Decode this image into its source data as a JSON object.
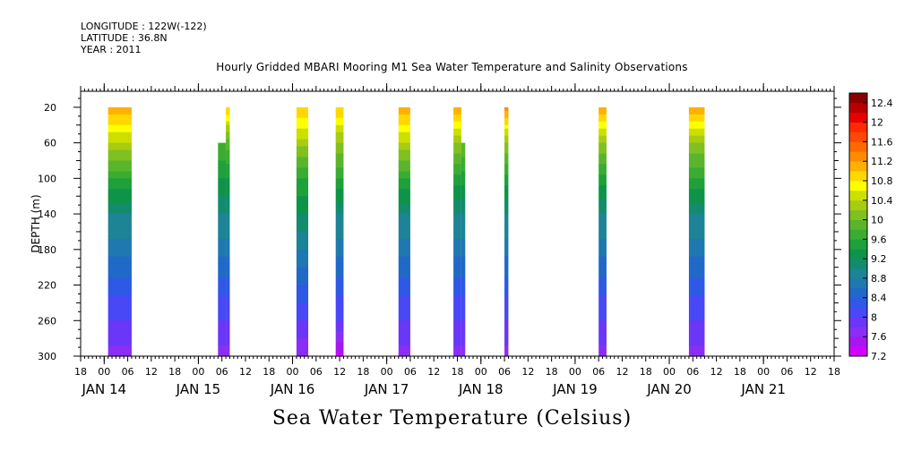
{
  "header": {
    "longitude": "LONGITUDE : 122W(-122)",
    "latitude": "LATITUDE : 36.8N",
    "year": "YEAR : 2011"
  },
  "chart_data": {
    "type": "heatmap",
    "title": "Hourly Gridded MBARI Mooring M1 Sea Water Temperature and Salinity Observations",
    "xlabel": "Sea Water Temperature (Celsius)",
    "ylabel": "DEPTH (m)",
    "x_unit": "hours since JAN 14 00",
    "xlim": [
      -6,
      186
    ],
    "ylim": [
      300,
      2
    ],
    "y_reversed": true,
    "y_ticks": [
      20,
      60,
      100,
      140,
      180,
      220,
      260,
      300
    ],
    "x_hour_ticks": [
      {
        "h": -6,
        "label": "18"
      },
      {
        "h": 0,
        "label": "00"
      },
      {
        "h": 6,
        "label": "06"
      },
      {
        "h": 12,
        "label": "12"
      },
      {
        "h": 18,
        "label": "18"
      },
      {
        "h": 24,
        "label": "00"
      },
      {
        "h": 30,
        "label": "06"
      },
      {
        "h": 36,
        "label": "12"
      },
      {
        "h": 42,
        "label": "18"
      },
      {
        "h": 48,
        "label": "00"
      },
      {
        "h": 54,
        "label": "06"
      },
      {
        "h": 60,
        "label": "12"
      },
      {
        "h": 66,
        "label": "18"
      },
      {
        "h": 72,
        "label": "00"
      },
      {
        "h": 78,
        "label": "06"
      },
      {
        "h": 84,
        "label": "12"
      },
      {
        "h": 90,
        "label": "18"
      },
      {
        "h": 96,
        "label": "00"
      },
      {
        "h": 102,
        "label": "06"
      },
      {
        "h": 108,
        "label": "12"
      },
      {
        "h": 114,
        "label": "18"
      },
      {
        "h": 120,
        "label": "00"
      },
      {
        "h": 126,
        "label": "06"
      },
      {
        "h": 132,
        "label": "12"
      },
      {
        "h": 138,
        "label": "18"
      },
      {
        "h": 144,
        "label": "00"
      },
      {
        "h": 150,
        "label": "06"
      },
      {
        "h": 156,
        "label": "12"
      },
      {
        "h": 162,
        "label": "18"
      },
      {
        "h": 168,
        "label": "00"
      },
      {
        "h": 174,
        "label": "06"
      },
      {
        "h": 180,
        "label": "12"
      },
      {
        "h": 186,
        "label": "18"
      }
    ],
    "x_date_labels": [
      {
        "h": 0,
        "label": "JAN 14"
      },
      {
        "h": 24,
        "label": "JAN 15"
      },
      {
        "h": 48,
        "label": "JAN 16"
      },
      {
        "h": 72,
        "label": "JAN 17"
      },
      {
        "h": 96,
        "label": "JAN 18"
      },
      {
        "h": 120,
        "label": "JAN 19"
      },
      {
        "h": 144,
        "label": "JAN 20"
      },
      {
        "h": 168,
        "label": "JAN 21"
      }
    ],
    "colorbar": {
      "levels": [
        "12.4",
        "12",
        "11.6",
        "11.2",
        "10.8",
        "10.4",
        "10",
        "9.6",
        "9.2",
        "8.8",
        "8.4",
        "8",
        "7.6",
        "7.2"
      ],
      "min": 7.2,
      "max": 12.6,
      "step": 0.2,
      "colors": [
        "#d400ff",
        "#a617f0",
        "#8a2ef5",
        "#6a36f8",
        "#4848f6",
        "#2e58e6",
        "#2169c8",
        "#1f78b0",
        "#1c8496",
        "#128c6c",
        "#0e9448",
        "#1fa03a",
        "#3aac32",
        "#5bb52c",
        "#80c020",
        "#a8cc10",
        "#cce000",
        "#ffff00",
        "#ffd800",
        "#ffb000",
        "#ff8c00",
        "#ff6a00",
        "#ff4800",
        "#ff2a00",
        "#e80000",
        "#b80000",
        "#8a0000"
      ]
    },
    "profiles": [
      {
        "start_h": 1,
        "end_h": 7,
        "top_m": 20,
        "bottom_m": 300,
        "temps": [
          {
            "d": 20,
            "t": 11.2
          },
          {
            "d": 60,
            "t": 10.4
          },
          {
            "d": 100,
            "t": 9.6
          },
          {
            "d": 140,
            "t": 9.0
          },
          {
            "d": 180,
            "t": 8.7
          },
          {
            "d": 220,
            "t": 8.3
          },
          {
            "d": 260,
            "t": 8.0
          },
          {
            "d": 300,
            "t": 7.7
          }
        ]
      },
      {
        "start_h": 29,
        "end_h": 31,
        "top_m": 60,
        "bottom_m": 300,
        "temps": [
          {
            "d": 60,
            "t": 9.8
          },
          {
            "d": 100,
            "t": 9.4
          },
          {
            "d": 140,
            "t": 9.0
          },
          {
            "d": 180,
            "t": 8.7
          },
          {
            "d": 220,
            "t": 8.3
          },
          {
            "d": 260,
            "t": 8.0
          },
          {
            "d": 300,
            "t": 7.7
          }
        ]
      },
      {
        "start_h": 31,
        "end_h": 32,
        "top_m": 20,
        "bottom_m": 300,
        "temps": [
          {
            "d": 20,
            "t": 11.0
          },
          {
            "d": 60,
            "t": 9.9
          },
          {
            "d": 100,
            "t": 9.4
          },
          {
            "d": 140,
            "t": 9.0
          },
          {
            "d": 180,
            "t": 8.7
          },
          {
            "d": 220,
            "t": 8.3
          },
          {
            "d": 260,
            "t": 8.0
          },
          {
            "d": 300,
            "t": 7.7
          }
        ]
      },
      {
        "start_h": 49,
        "end_h": 52,
        "top_m": 20,
        "bottom_m": 300,
        "temps": [
          {
            "d": 20,
            "t": 11.0
          },
          {
            "d": 60,
            "t": 10.3
          },
          {
            "d": 100,
            "t": 9.6
          },
          {
            "d": 140,
            "t": 9.2
          },
          {
            "d": 180,
            "t": 8.8
          },
          {
            "d": 220,
            "t": 8.4
          },
          {
            "d": 260,
            "t": 8.0
          },
          {
            "d": 300,
            "t": 7.6
          }
        ]
      },
      {
        "start_h": 59,
        "end_h": 61,
        "top_m": 20,
        "bottom_m": 300,
        "temps": [
          {
            "d": 20,
            "t": 11.0
          },
          {
            "d": 60,
            "t": 10.2
          },
          {
            "d": 100,
            "t": 9.6
          },
          {
            "d": 140,
            "t": 9.0
          },
          {
            "d": 180,
            "t": 8.7
          },
          {
            "d": 220,
            "t": 8.3
          },
          {
            "d": 260,
            "t": 8.0
          },
          {
            "d": 300,
            "t": 7.3
          }
        ]
      },
      {
        "start_h": 75,
        "end_h": 78,
        "top_m": 20,
        "bottom_m": 300,
        "temps": [
          {
            "d": 20,
            "t": 11.2
          },
          {
            "d": 60,
            "t": 10.4
          },
          {
            "d": 100,
            "t": 9.6
          },
          {
            "d": 140,
            "t": 9.0
          },
          {
            "d": 180,
            "t": 8.7
          },
          {
            "d": 220,
            "t": 8.3
          },
          {
            "d": 260,
            "t": 8.0
          },
          {
            "d": 300,
            "t": 7.7
          }
        ]
      },
      {
        "start_h": 89,
        "end_h": 91,
        "top_m": 20,
        "bottom_m": 300,
        "temps": [
          {
            "d": 20,
            "t": 11.2
          },
          {
            "d": 60,
            "t": 10.2
          },
          {
            "d": 100,
            "t": 9.5
          },
          {
            "d": 140,
            "t": 9.0
          },
          {
            "d": 180,
            "t": 8.7
          },
          {
            "d": 220,
            "t": 8.3
          },
          {
            "d": 260,
            "t": 8.0
          },
          {
            "d": 300,
            "t": 7.7
          }
        ]
      },
      {
        "start_h": 91,
        "end_h": 92,
        "top_m": 60,
        "bottom_m": 300,
        "temps": [
          {
            "d": 60,
            "t": 10.0
          },
          {
            "d": 100,
            "t": 9.5
          },
          {
            "d": 140,
            "t": 9.0
          },
          {
            "d": 180,
            "t": 8.7
          },
          {
            "d": 220,
            "t": 8.3
          },
          {
            "d": 260,
            "t": 8.0
          },
          {
            "d": 300,
            "t": 7.7
          }
        ]
      },
      {
        "start_h": 102,
        "end_h": 103,
        "top_m": 20,
        "bottom_m": 300,
        "temps": [
          {
            "d": 20,
            "t": 11.3
          },
          {
            "d": 60,
            "t": 10.2
          },
          {
            "d": 100,
            "t": 9.5
          },
          {
            "d": 140,
            "t": 9.0
          },
          {
            "d": 180,
            "t": 8.7
          },
          {
            "d": 220,
            "t": 8.3
          },
          {
            "d": 260,
            "t": 8.0
          },
          {
            "d": 300,
            "t": 7.7
          }
        ]
      },
      {
        "start_h": 126,
        "end_h": 128,
        "top_m": 20,
        "bottom_m": 300,
        "temps": [
          {
            "d": 20,
            "t": 11.2
          },
          {
            "d": 60,
            "t": 10.2
          },
          {
            "d": 100,
            "t": 9.5
          },
          {
            "d": 140,
            "t": 9.0
          },
          {
            "d": 180,
            "t": 8.7
          },
          {
            "d": 220,
            "t": 8.3
          },
          {
            "d": 260,
            "t": 8.0
          },
          {
            "d": 300,
            "t": 7.7
          }
        ]
      },
      {
        "start_h": 149,
        "end_h": 153,
        "top_m": 20,
        "bottom_m": 300,
        "temps": [
          {
            "d": 20,
            "t": 11.2
          },
          {
            "d": 60,
            "t": 10.2
          },
          {
            "d": 100,
            "t": 9.6
          },
          {
            "d": 140,
            "t": 9.0
          },
          {
            "d": 180,
            "t": 8.7
          },
          {
            "d": 220,
            "t": 8.3
          },
          {
            "d": 260,
            "t": 8.0
          },
          {
            "d": 300,
            "t": 7.7
          }
        ]
      }
    ]
  }
}
